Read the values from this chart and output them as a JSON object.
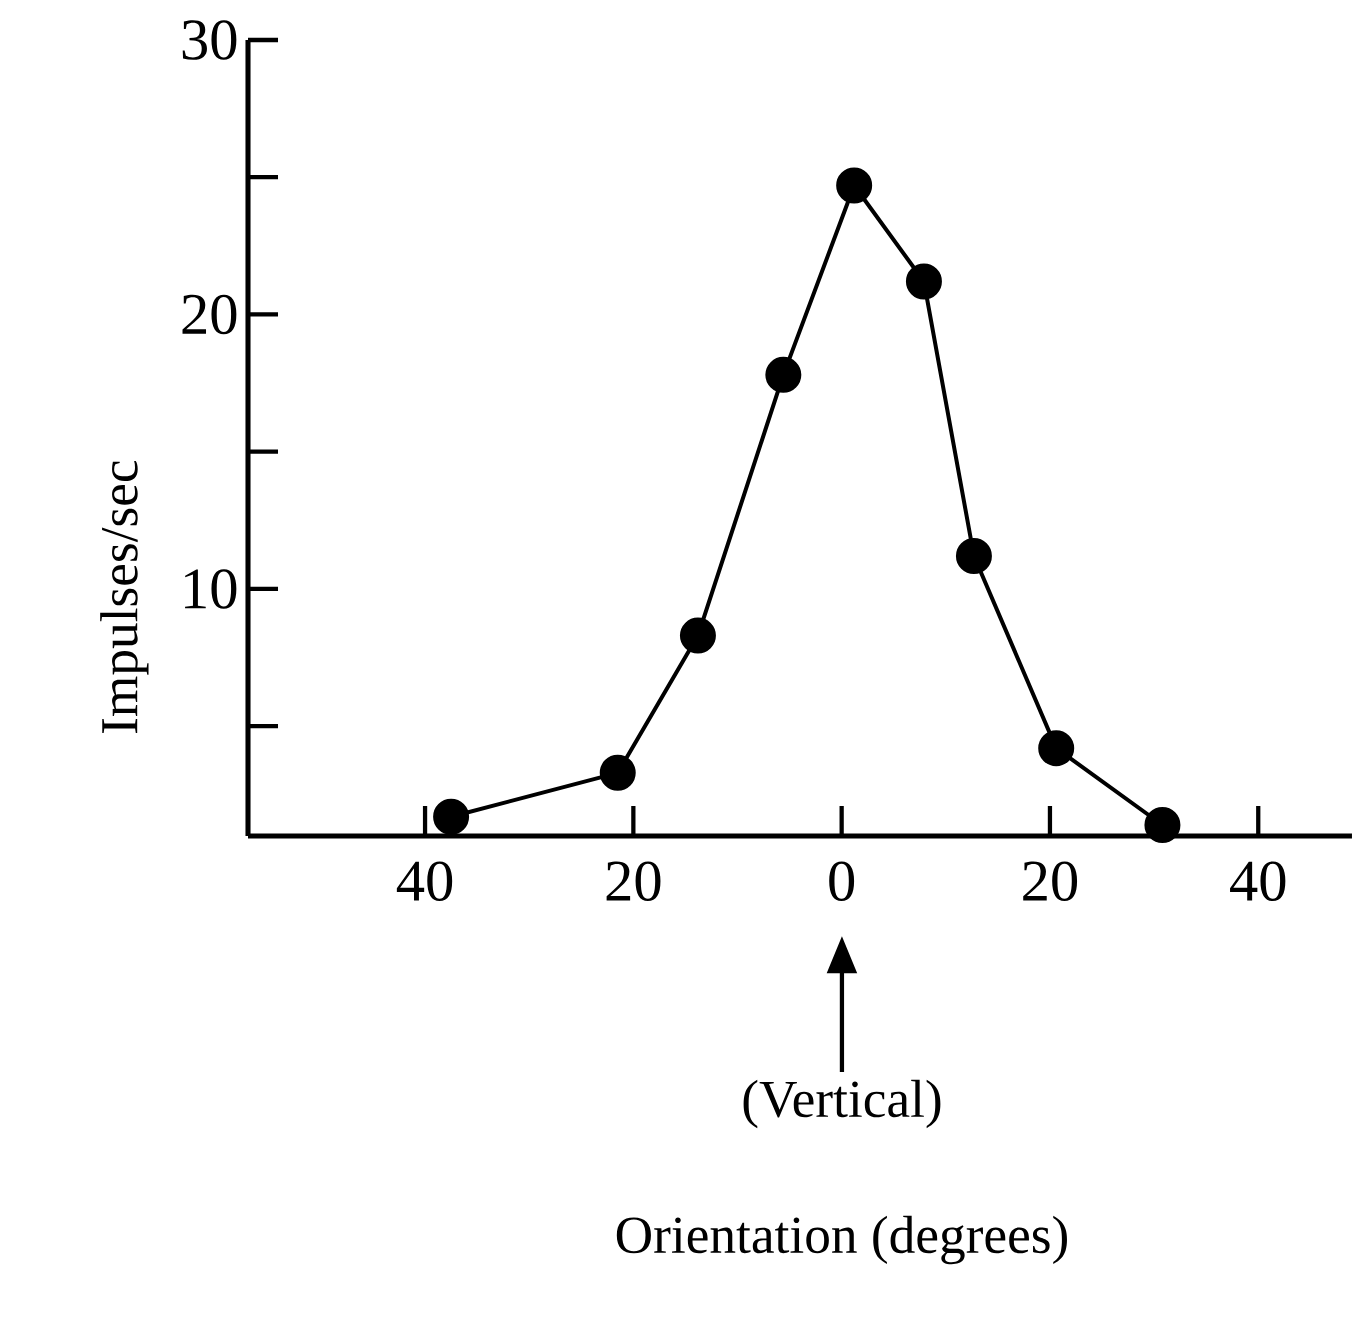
{
  "chart_data": {
    "type": "line",
    "ylabel": "Impulses/sec",
    "x": [
      -37.5,
      -21.5,
      -13.8,
      -5.6,
      1.2,
      7.9,
      12.7,
      20.6,
      30.8
    ],
    "values": [
      1.7,
      3.3,
      8.3,
      17.8,
      24.7,
      21.2,
      11.2,
      4.2,
      1.4
    ],
    "color": "#000000",
    "marker": "circle",
    "line_style": "solid",
    "xlim": [
      -57,
      49
    ],
    "ylim": [
      1,
      30
    ],
    "xticks": [
      {
        "value": -40,
        "label": "40"
      },
      {
        "value": -20,
        "label": "20"
      },
      0,
      20,
      40
    ],
    "yticks": [
      {
        "value": 5,
        "label": null
      },
      10,
      {
        "value": 15,
        "label": null
      },
      20,
      {
        "value": 25,
        "label": null
      },
      30
    ],
    "annotations": [
      "(Vertical)",
      "Orientation (degrees)"
    ]
  }
}
